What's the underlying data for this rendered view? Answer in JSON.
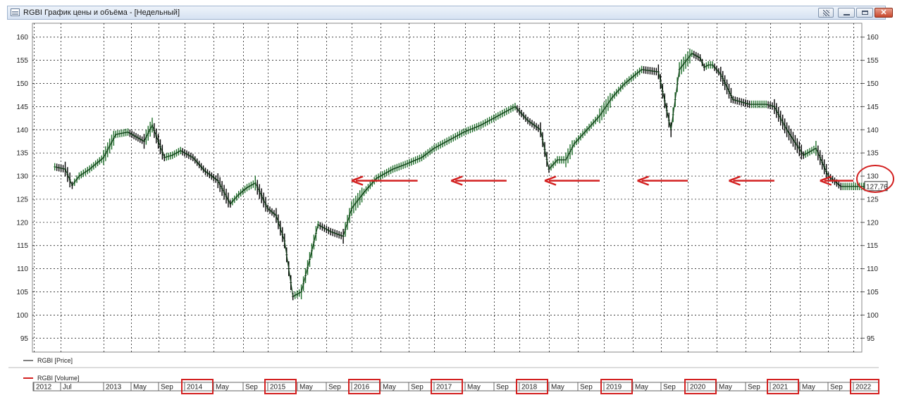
{
  "window": {
    "title": "RGBI График цены и объёма - [Недельный]",
    "close_glyph": "✕",
    "icons": [
      "chart-window-icon",
      "grid-icon",
      "minimize-icon",
      "maximize-icon",
      "close-icon"
    ]
  },
  "chart_data": {
    "type": "line",
    "style": "ohlc-bars",
    "colors": {
      "up": "#1e6e2a",
      "down": "#000000",
      "annotation": "#d32020"
    },
    "y_ticks": [
      "160",
      "155",
      "150",
      "145",
      "140",
      "135",
      "130",
      "125",
      "120",
      "115",
      "110",
      "105",
      "100",
      "95"
    ],
    "ylim": [
      92,
      163
    ],
    "grid": true,
    "last_price_label": "127,76",
    "last_price": 127.76,
    "legend": [
      {
        "label": "RGBI [Price]",
        "color": "#000000"
      },
      {
        "label": "RGBI [Volume]",
        "color": "#d32020"
      }
    ],
    "time_axis": [
      "2012",
      "Jul",
      "2013",
      "May",
      "Sep",
      "2014",
      "May",
      "Sep",
      "2015",
      "May",
      "Sep",
      "2016",
      "May",
      "Sep",
      "2017",
      "May",
      "Sep",
      "2018",
      "May",
      "Sep",
      "2019",
      "May",
      "Sep",
      "2020",
      "May",
      "Sep",
      "2021",
      "May",
      "Sep",
      "2022"
    ],
    "highlighted_years": [
      "2014",
      "2015",
      "2016",
      "2017",
      "2018",
      "2019",
      "2020",
      "2021",
      "2022"
    ],
    "series": [
      {
        "name": "RGBI [Price]",
        "x": [
          2012.3,
          2012.45,
          2012.55,
          2012.65,
          2012.8,
          2013.0,
          2013.15,
          2013.3,
          2013.5,
          2013.6,
          2013.75,
          2013.85,
          2013.95,
          2014.1,
          2014.25,
          2014.4,
          2014.55,
          2014.65,
          2014.75,
          2014.85,
          2015.0,
          2015.1,
          2015.2,
          2015.3,
          2015.4,
          2015.5,
          2015.6,
          2015.75,
          2015.9,
          2016.0,
          2016.15,
          2016.3,
          2016.5,
          2016.65,
          2016.85,
          2017.0,
          2017.15,
          2017.35,
          2017.55,
          2017.75,
          2017.95,
          2018.1,
          2018.25,
          2018.35,
          2018.45,
          2018.55,
          2018.65,
          2018.8,
          2018.95,
          2019.1,
          2019.25,
          2019.45,
          2019.65,
          2019.8,
          2019.9,
          2020.05,
          2020.15,
          2020.2,
          2020.25,
          2020.3,
          2020.4,
          2020.55,
          2020.75,
          2020.95,
          2021.05,
          2021.2,
          2021.4,
          2021.55,
          2021.7,
          2021.85,
          2022.0,
          2022.05,
          2022.1,
          2022.15,
          2022.2
        ],
        "values": [
          132.0,
          131.5,
          128.0,
          130.0,
          131.5,
          134.0,
          139.0,
          139.5,
          137.5,
          141.0,
          134.0,
          134.5,
          135.5,
          134.0,
          131.0,
          129.0,
          124.0,
          126.0,
          127.5,
          128.5,
          123.0,
          121.5,
          116.0,
          104.0,
          105.0,
          112.0,
          119.5,
          118.0,
          117.0,
          123.0,
          126.5,
          129.5,
          131.5,
          132.5,
          134.0,
          136.0,
          137.5,
          139.5,
          141.0,
          143.0,
          145.0,
          142.0,
          140.0,
          131.5,
          133.5,
          133.5,
          137.0,
          140.0,
          143.0,
          147.0,
          150.0,
          153.0,
          152.5,
          140.0,
          153.0,
          156.5,
          155.5,
          153.5,
          154.0,
          154.0,
          152.0,
          146.5,
          145.5,
          145.5,
          145.0,
          140.0,
          134.5,
          136.0,
          130.0,
          127.76,
          127.76,
          127.76,
          127.76,
          127.76,
          127.76
        ]
      }
    ],
    "annotation_arrows": [
      {
        "from_year": 2016.8,
        "to_year": 2016.0,
        "y": 129
      },
      {
        "from_year": 2017.85,
        "to_year": 2017.2,
        "y": 129
      },
      {
        "from_year": 2018.95,
        "to_year": 2018.3,
        "y": 129
      },
      {
        "from_year": 2020.0,
        "to_year": 2019.4,
        "y": 129
      },
      {
        "from_year": 2021.05,
        "to_year": 2020.5,
        "y": 129
      },
      {
        "from_year": 2022.0,
        "to_year": 2021.6,
        "y": 129
      }
    ]
  }
}
